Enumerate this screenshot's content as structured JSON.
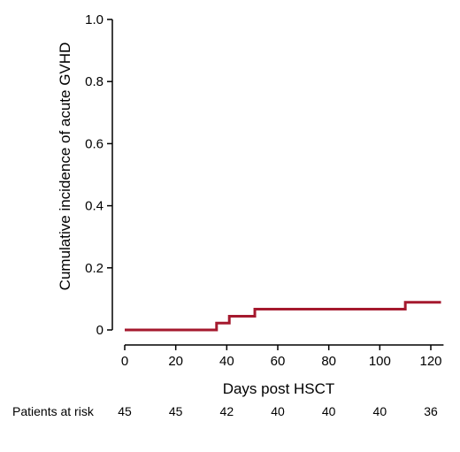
{
  "chart_data": {
    "type": "line",
    "step": true,
    "xlabel": "Days post HSCT",
    "ylabel": "Cumulative incidence of acute GVHD",
    "xlim": [
      0,
      125
    ],
    "ylim": [
      0,
      1.0
    ],
    "x_ticks": [
      0,
      20,
      40,
      60,
      80,
      100,
      120
    ],
    "y_ticks": [
      0,
      0.2,
      0.4,
      0.6,
      0.8,
      1.0
    ],
    "y_tick_labels": [
      "0",
      "0.2",
      "0.4",
      "0.6",
      "0.8",
      "1.0"
    ],
    "grid": false,
    "line_color": "#a5192e",
    "series": [
      {
        "x": [
          0,
          36,
          41,
          51,
          110,
          124
        ],
        "y": [
          0,
          0.022,
          0.044,
          0.067,
          0.089,
          0.089
        ]
      }
    ],
    "risk_table": {
      "label": "Patients at risk",
      "x": [
        0,
        20,
        40,
        60,
        80,
        100,
        120
      ],
      "values": [
        "45",
        "45",
        "42",
        "40",
        "40",
        "40",
        "36"
      ]
    }
  }
}
